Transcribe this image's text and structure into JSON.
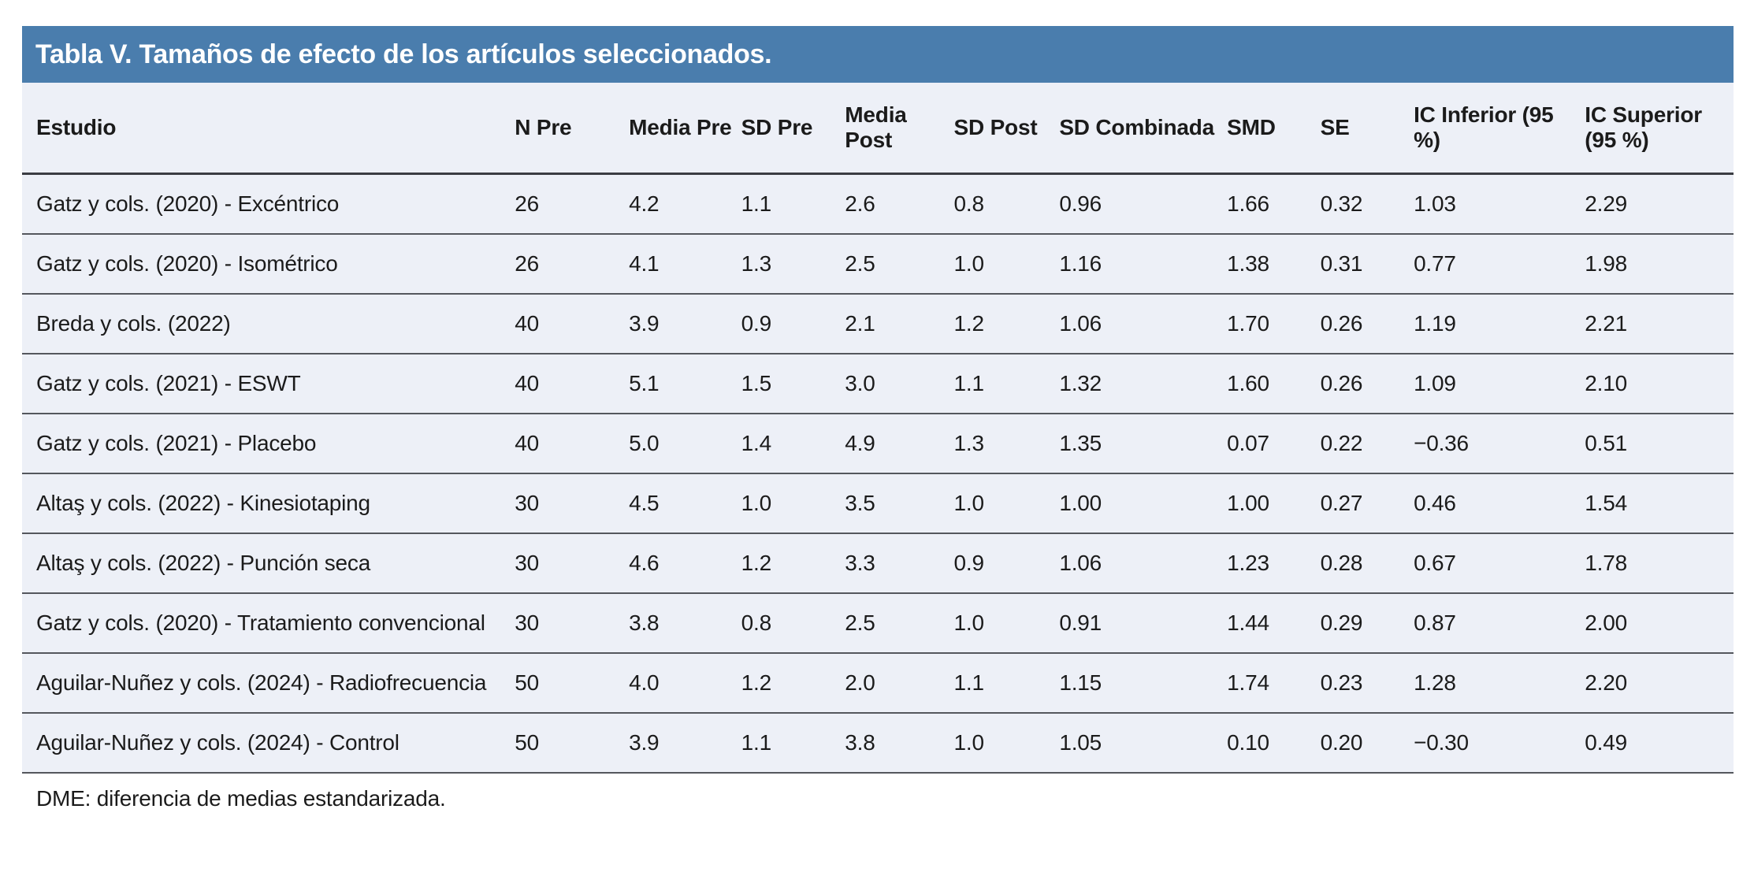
{
  "title": "Tabla V. Tamaños de efecto de los artículos seleccionados.",
  "footnote": "DME: diferencia de medias estandarizada.",
  "colors": {
    "title_bar_bg": "#4A7DAD",
    "title_text": "#FFFFFF",
    "row_bg": "#EDF0F7",
    "header_border": "#3A3C42",
    "row_border": "#54575D",
    "body_text": "#1B1B1B"
  },
  "table": {
    "columns": [
      {
        "label": "Estudio"
      },
      {
        "label": "N Pre"
      },
      {
        "label": "Media Pre"
      },
      {
        "label": "SD Pre"
      },
      {
        "label": "Media Post"
      },
      {
        "label": "SD Post"
      },
      {
        "label": "SD Combinada"
      },
      {
        "label": "SMD"
      },
      {
        "label": "SE"
      },
      {
        "label": "IC Inferior (95 %)"
      },
      {
        "label": "IC Superior (95 %)"
      }
    ],
    "rows": [
      {
        "cells": [
          "Gatz y cols. (2020) - Excéntrico",
          "26",
          "4.2",
          "1.1",
          "2.6",
          "0.8",
          "0.96",
          "1.66",
          "0.32",
          "1.03",
          "2.29"
        ]
      },
      {
        "cells": [
          "Gatz y cols. (2020) - Isométrico",
          "26",
          "4.1",
          "1.3",
          "2.5",
          "1.0",
          "1.16",
          "1.38",
          "0.31",
          "0.77",
          "1.98"
        ]
      },
      {
        "cells": [
          "Breda y cols. (2022)",
          "40",
          "3.9",
          "0.9",
          "2.1",
          "1.2",
          "1.06",
          "1.70",
          "0.26",
          "1.19",
          "2.21"
        ]
      },
      {
        "cells": [
          "Gatz y cols. (2021) - ESWT",
          "40",
          "5.1",
          "1.5",
          "3.0",
          "1.1",
          "1.32",
          "1.60",
          "0.26",
          "1.09",
          "2.10"
        ]
      },
      {
        "cells": [
          "Gatz y cols. (2021) - Placebo",
          "40",
          "5.0",
          "1.4",
          "4.9",
          "1.3",
          "1.35",
          "0.07",
          "0.22",
          "−0.36",
          "0.51"
        ]
      },
      {
        "cells": [
          "Altaş y cols. (2022) - Kinesiotaping",
          "30",
          "4.5",
          "1.0",
          "3.5",
          "1.0",
          "1.00",
          "1.00",
          "0.27",
          "0.46",
          "1.54"
        ]
      },
      {
        "cells": [
          "Altaş y cols. (2022) - Punción seca",
          "30",
          "4.6",
          "1.2",
          "3.3",
          "0.9",
          "1.06",
          "1.23",
          "0.28",
          "0.67",
          "1.78"
        ]
      },
      {
        "cells": [
          "Gatz y cols. (2020) - Tratamiento convencional",
          "30",
          "3.8",
          "0.8",
          "2.5",
          "1.0",
          "0.91",
          "1.44",
          "0.29",
          "0.87",
          "2.00"
        ]
      },
      {
        "cells": [
          "Aguilar-Nuñez y cols. (2024) - Radiofrecuencia",
          "50",
          "4.0",
          "1.2",
          "2.0",
          "1.1",
          "1.15",
          "1.74",
          "0.23",
          "1.28",
          "2.20"
        ]
      },
      {
        "cells": [
          "Aguilar-Nuñez y cols. (2024) - Control",
          "50",
          "3.9",
          "1.1",
          "3.8",
          "1.0",
          "1.05",
          "0.10",
          "0.20",
          "−0.30",
          "0.49"
        ]
      }
    ]
  }
}
